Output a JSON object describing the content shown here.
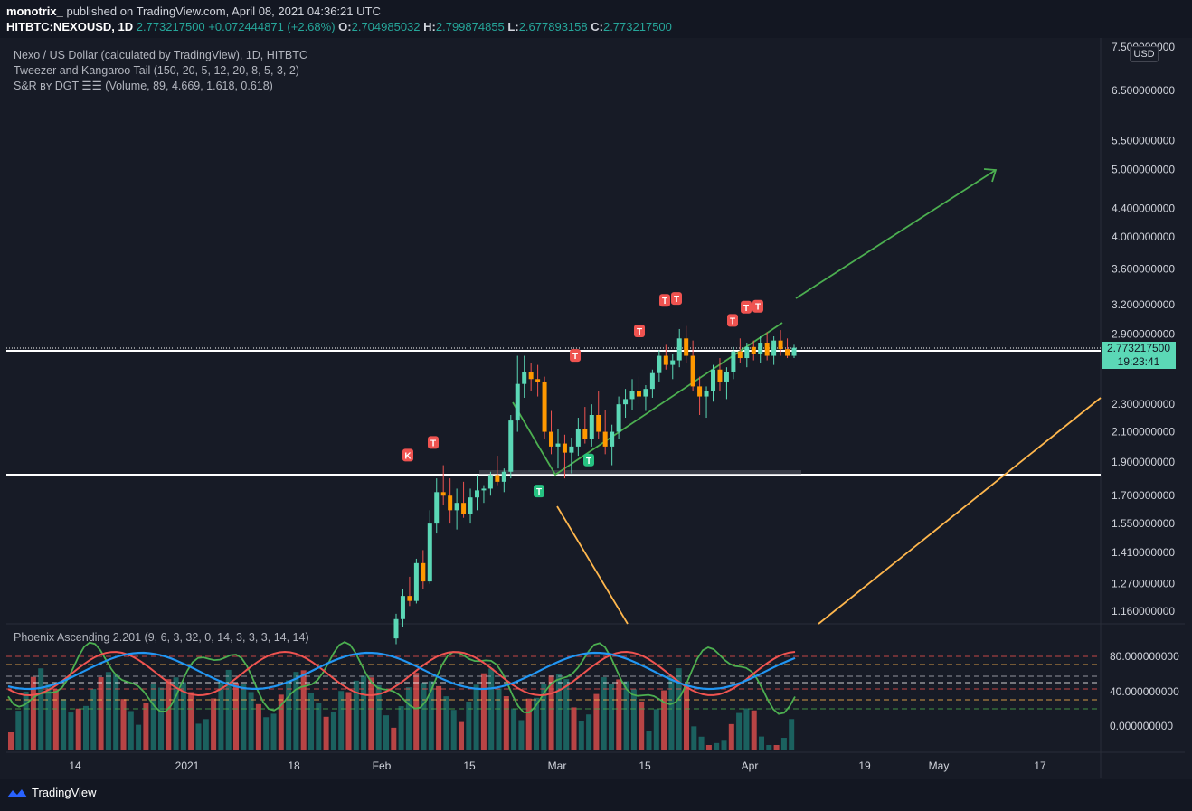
{
  "header": {
    "author": "monotrix_",
    "published_text": "published on TradingView.com, April 08, 2021 04:36:21 UTC",
    "symbol": "HITBTC:NEXOUSD, 1D",
    "last": "2.773217500",
    "change": "+0.072444871 (+2.68%)",
    "o_label": "O:",
    "o": "2.704985032",
    "h_label": "H:",
    "h": "2.799874855",
    "l_label": "L:",
    "l": "2.677893158",
    "c_label": "C:",
    "c": "2.773217500"
  },
  "legend": {
    "line1": "Nexo / US Dollar (calculated by TradingView), 1D, HITBTC",
    "line2": "Tweezer and Kangaroo Tail (150, 20, 5, 12, 20, 8, 5, 3, 2)",
    "line3": "S&R ʙʏ DGT ☰☰ (Volume, 89, 4.669, 1.618, 0.618)"
  },
  "oscillator": {
    "title": "Phoenix Ascending 2.201 (9, 6, 3, 32, 0, 14, 3, 3, 3, 14, 14)",
    "y_ticks": [
      "80.000000000",
      "40.000000000",
      "0.000000000"
    ]
  },
  "currency": "USD",
  "price_tag": {
    "price": "2.773217500",
    "countdown": "19:23:41"
  },
  "footer": {
    "brand": "TradingView"
  },
  "colors": {
    "up": "#26a69a",
    "up_body": "#5bd8b6",
    "down": "#ef5350",
    "bg": "#171b26",
    "accent_green": "#4caf50",
    "accent_orange": "#ffb74d"
  },
  "chart_data": {
    "type": "candlestick",
    "scale": "log",
    "y_ticks": [
      7.5,
      6.5,
      5.5,
      5.0,
      4.4,
      4.0,
      3.6,
      3.2,
      2.9,
      2.3,
      2.1,
      1.9,
      1.7,
      1.55,
      1.41,
      1.27,
      1.16
    ],
    "y_tick_labels": [
      "7.500000000",
      "6.500000000",
      "5.500000000",
      "5.000000000",
      "4.400000000",
      "4.000000000",
      "3.600000000",
      "3.200000000",
      "2.900000000",
      "2.300000000",
      "2.100000000",
      "1.900000000",
      "1.700000000",
      "1.550000000",
      "1.410000000",
      "1.270000000",
      "1.160000000"
    ],
    "x_ticks": [
      "14",
      "2021",
      "18",
      "Feb",
      "15",
      "Mar",
      "15",
      "Apr",
      "19",
      "May",
      "17"
    ],
    "horizontal_levels": [
      2.773,
      1.82
    ],
    "signals": [
      {
        "label": "K",
        "price": 1.87,
        "color": "#ef5350"
      },
      {
        "label": "T",
        "price": 1.95,
        "color": "#ef5350"
      },
      {
        "label": "T",
        "price": 1.66,
        "color": "#26c281"
      },
      {
        "label": "T",
        "price": 1.84,
        "color": "#26c281"
      },
      {
        "label": "T",
        "price": 2.6,
        "color": "#ef5350"
      },
      {
        "label": "T",
        "price": 2.82,
        "color": "#ef5350"
      },
      {
        "label": "T",
        "price": 3.12,
        "color": "#ef5350"
      },
      {
        "label": "T",
        "price": 3.14,
        "color": "#ef5350"
      },
      {
        "label": "T",
        "price": 2.92,
        "color": "#ef5350"
      },
      {
        "label": "T",
        "price": 3.05,
        "color": "#ef5350"
      },
      {
        "label": "T",
        "price": 3.06,
        "color": "#ef5350"
      }
    ],
    "candles": [
      [
        1.06,
        1.15,
        1.04,
        1.13
      ],
      [
        1.13,
        1.25,
        1.1,
        1.22
      ],
      [
        1.22,
        1.3,
        1.18,
        1.2
      ],
      [
        1.2,
        1.38,
        1.19,
        1.36
      ],
      [
        1.36,
        1.42,
        1.25,
        1.28
      ],
      [
        1.28,
        1.62,
        1.27,
        1.55
      ],
      [
        1.55,
        1.8,
        1.5,
        1.72
      ],
      [
        1.72,
        1.88,
        1.65,
        1.7
      ],
      [
        1.7,
        1.8,
        1.55,
        1.62
      ],
      [
        1.62,
        1.74,
        1.52,
        1.66
      ],
      [
        1.66,
        1.78,
        1.58,
        1.6
      ],
      [
        1.6,
        1.74,
        1.55,
        1.69
      ],
      [
        1.69,
        1.82,
        1.62,
        1.73
      ],
      [
        1.73,
        1.76,
        1.66,
        1.74
      ],
      [
        1.74,
        1.84,
        1.7,
        1.82
      ],
      [
        1.82,
        1.94,
        1.76,
        1.78
      ],
      [
        1.78,
        1.86,
        1.72,
        1.84
      ],
      [
        1.84,
        2.22,
        1.8,
        2.18
      ],
      [
        2.18,
        2.7,
        2.1,
        2.46
      ],
      [
        2.46,
        2.7,
        2.35,
        2.56
      ],
      [
        2.56,
        2.64,
        2.4,
        2.5
      ],
      [
        2.5,
        2.62,
        2.36,
        2.48
      ],
      [
        2.48,
        2.52,
        2.05,
        2.1
      ],
      [
        2.1,
        2.25,
        1.95,
        2.0
      ],
      [
        2.0,
        2.12,
        1.86,
        2.02
      ],
      [
        2.02,
        2.08,
        1.8,
        1.96
      ],
      [
        1.96,
        2.06,
        1.83,
        2.0
      ],
      [
        2.0,
        2.2,
        1.94,
        2.12
      ],
      [
        2.12,
        2.28,
        2.02,
        2.05
      ],
      [
        2.05,
        2.3,
        2.0,
        2.22
      ],
      [
        2.22,
        2.4,
        2.05,
        2.1
      ],
      [
        2.1,
        2.26,
        1.95,
        2.0
      ],
      [
        2.0,
        2.15,
        1.88,
        2.1
      ],
      [
        2.1,
        2.36,
        2.05,
        2.3
      ],
      [
        2.3,
        2.42,
        2.2,
        2.34
      ],
      [
        2.34,
        2.5,
        2.26,
        2.4
      ],
      [
        2.4,
        2.52,
        2.3,
        2.36
      ],
      [
        2.36,
        2.45,
        2.25,
        2.42
      ],
      [
        2.42,
        2.58,
        2.35,
        2.55
      ],
      [
        2.55,
        2.75,
        2.48,
        2.7
      ],
      [
        2.7,
        2.8,
        2.58,
        2.62
      ],
      [
        2.62,
        2.72,
        2.5,
        2.66
      ],
      [
        2.66,
        2.95,
        2.6,
        2.86
      ],
      [
        2.86,
        2.98,
        2.64,
        2.7
      ],
      [
        2.7,
        2.84,
        2.4,
        2.44
      ],
      [
        2.44,
        2.52,
        2.22,
        2.36
      ],
      [
        2.36,
        2.44,
        2.2,
        2.4
      ],
      [
        2.4,
        2.62,
        2.32,
        2.58
      ],
      [
        2.58,
        2.68,
        2.4,
        2.48
      ],
      [
        2.48,
        2.6,
        2.34,
        2.56
      ],
      [
        2.56,
        2.78,
        2.5,
        2.74
      ],
      [
        2.74,
        2.86,
        2.64,
        2.68
      ],
      [
        2.68,
        2.82,
        2.6,
        2.78
      ],
      [
        2.78,
        2.84,
        2.66,
        2.72
      ],
      [
        2.72,
        2.88,
        2.64,
        2.82
      ],
      [
        2.82,
        2.92,
        2.66,
        2.7
      ],
      [
        2.7,
        2.88,
        2.62,
        2.84
      ],
      [
        2.84,
        2.94,
        2.7,
        2.76
      ],
      [
        2.76,
        2.86,
        2.68,
        2.7
      ],
      [
        2.7,
        2.8,
        2.68,
        2.773
      ]
    ]
  }
}
